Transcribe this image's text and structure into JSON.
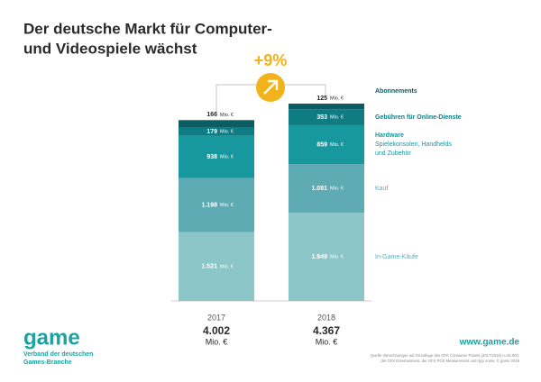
{
  "chart_data": {
    "type": "stacked-bar",
    "title_lines": [
      "Der deutsche Markt für Computer-",
      "und Videospiele wächst"
    ],
    "categories": [
      "2017",
      "2018"
    ],
    "unit": "Mio. €",
    "growth_label": "+9%",
    "series": [
      {
        "name": "In-Game-Käufe",
        "color": "#8cc6c9",
        "values": [
          1521,
          1949
        ],
        "value_labels": [
          "1.521",
          "1.949"
        ]
      },
      {
        "name": "Kauf",
        "color": "#5fabb4",
        "values": [
          1198,
          1081
        ],
        "value_labels": [
          "1.198",
          "1.081"
        ]
      },
      {
        "name": "Hardware",
        "description_lines": [
          "Spielekonsolen, Handhelds",
          "und Zubehör"
        ],
        "color": "#17989f",
        "values": [
          938,
          859
        ],
        "value_labels": [
          "938",
          "859"
        ]
      },
      {
        "name": "Gebühren für Online-Dienste",
        "color": "#0f7c84",
        "values": [
          179,
          353
        ],
        "value_labels": [
          "179",
          "353"
        ]
      },
      {
        "name": "Abonnements",
        "color": "#0b5c63",
        "values": [
          166,
          125
        ],
        "value_labels": [
          "166",
          "125"
        ]
      }
    ],
    "totals": [
      {
        "value": 4002,
        "label": "4.002"
      },
      {
        "value": 4367,
        "label": "4.367"
      }
    ]
  },
  "footer": {
    "logo": "game",
    "org_lines": [
      "Verband der deutschen",
      "Games-Branche"
    ],
    "url": "www.game.de",
    "source_lines": [
      "Quelle: Berechnungen auf Grundlage des GFK Consumer Panels (2017/2018) n=25.000,",
      "der GFK Entertainment, der GFK POS Measurement und App Annie, © game 2019"
    ]
  }
}
